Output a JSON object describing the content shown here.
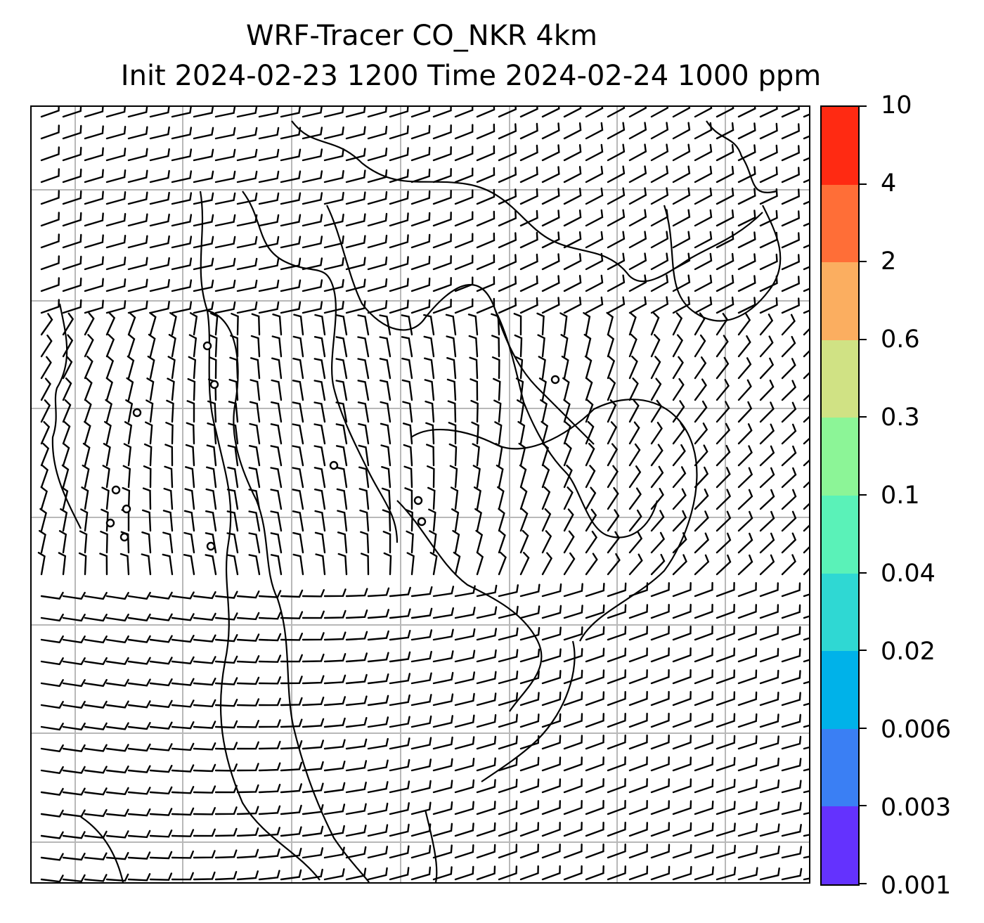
{
  "title": {
    "line1": "WRF-Tracer CO_NKR 4km",
    "line2": "Init 2024-02-23 1200 Time 2024-02-24 1000 ppm"
  },
  "colorbar": {
    "levels": [
      "10",
      "4",
      "2",
      "0.6",
      "0.3",
      "0.1",
      "0.04",
      "0.02",
      "0.006",
      "0.003",
      "0.001"
    ],
    "colors": [
      "#ff2a12",
      "#ff6e37",
      "#fbae60",
      "#d0e284",
      "#8cf597",
      "#5af2b8",
      "#2fd8d3",
      "#00b2e9",
      "#3a7ff4",
      "#6432fe"
    ]
  },
  "map": {
    "gridlines": true,
    "wind_symbol": "wind-barb",
    "coastline_color": "#000000",
    "grid_color": "#b8b8b8"
  }
}
